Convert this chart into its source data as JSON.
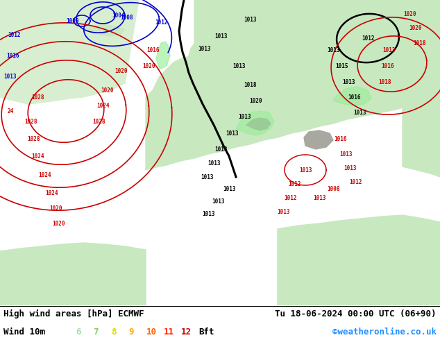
{
  "title_left": "High wind areas [hPa] ECMWF",
  "title_right": "Tu 18-06-2024 00:00 UTC (06+90)",
  "label_left": "Wind 10m",
  "bft_numbers": [
    "6",
    "7",
    "8",
    "9",
    "10",
    "11",
    "12"
  ],
  "bft_colors": [
    "#aaddaa",
    "#88cc66",
    "#dddd00",
    "#ffaa00",
    "#ff6600",
    "#ff2200",
    "#cc0000"
  ],
  "bft_label": "Bft",
  "copyright": "©weatheronline.co.uk",
  "copyright_color": "#1e90ff",
  "caption_bg_color": "#ffffff",
  "figure_width": 6.34,
  "figure_height": 4.9,
  "dpi": 100,
  "caption_font_size": 9.0,
  "map_sea_color": "#c8ccd4",
  "map_land_color": "#c8e8c0",
  "map_land2_color": "#d8eed0",
  "grey_color": "#a8a8a0",
  "contour_blue": "#0000cc",
  "contour_red": "#cc0000",
  "contour_black": "#000000",
  "contour_green": "#008000",
  "wind_green": "#90ee90",
  "wind_green2": "#70cc70"
}
